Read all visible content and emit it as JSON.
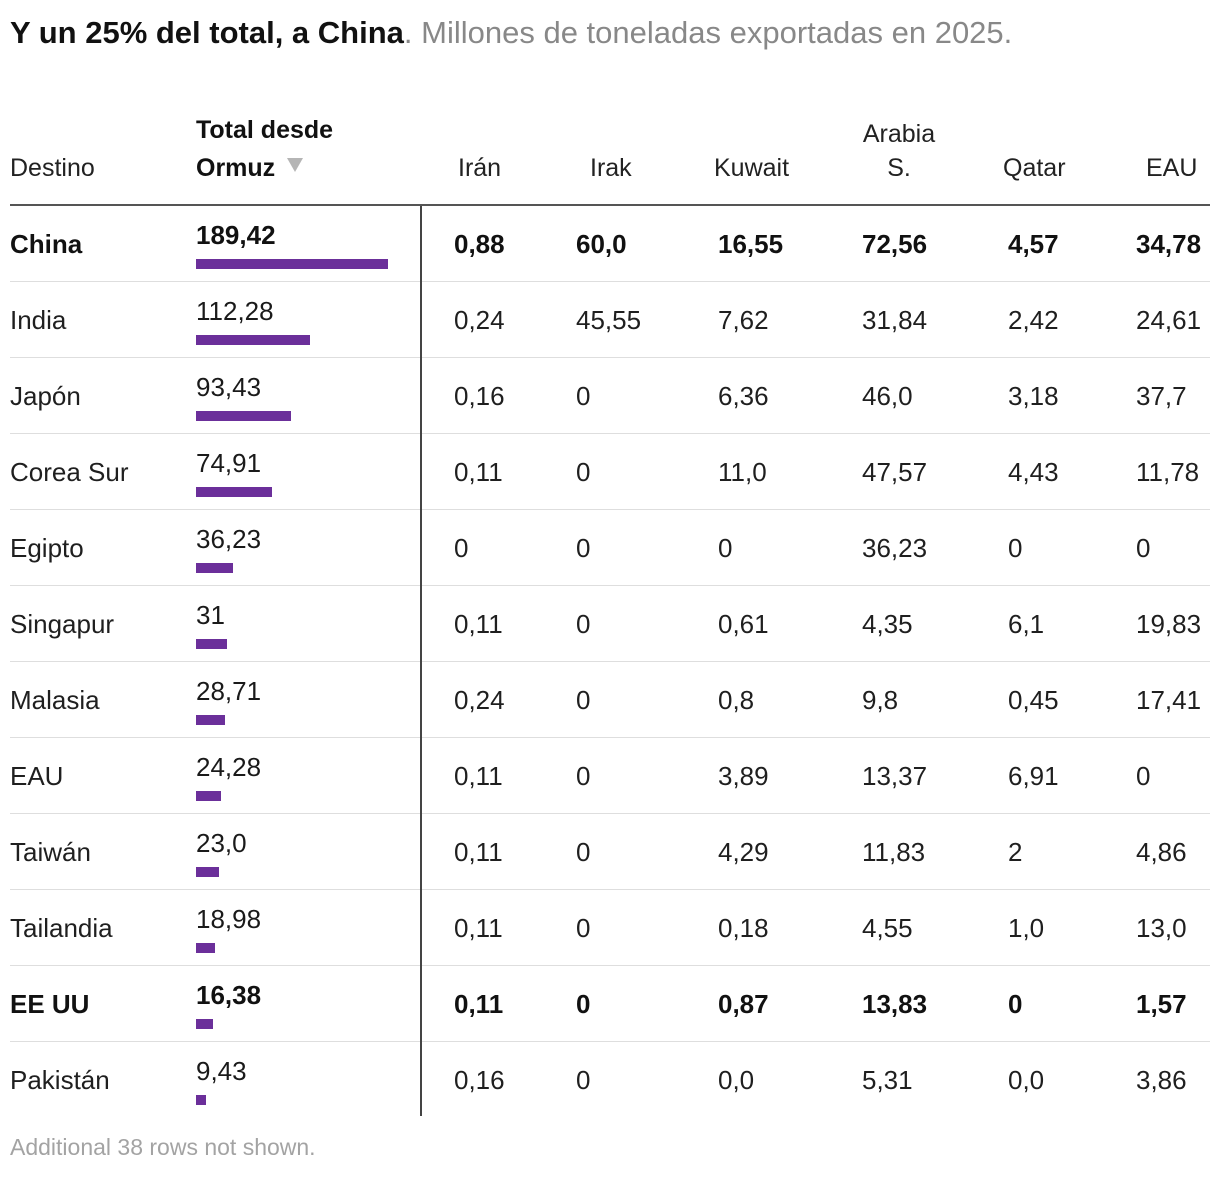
{
  "title": {
    "bold": "Y un 25% del total, a China",
    "separator": ".",
    "subtitle": " Millones de toneladas exportadas en 2025."
  },
  "columns": {
    "destino": "Destino",
    "total_line1": "Total desde",
    "total_line2": "Ormuz",
    "iran": "Irán",
    "irak": "Irak",
    "kuwait": "Kuwait",
    "arabia_line1": "Arabia",
    "arabia_line2": "S.",
    "qatar": "Qatar",
    "eau": "EAU"
  },
  "sort_indicator": "triangle-down-icon",
  "colors": {
    "bar": "#6b2f9a",
    "sort_icon": "#b5b5b5"
  },
  "chart_data": {
    "type": "table",
    "bar_column": "total",
    "bar_max": 189.42,
    "rows": [
      {
        "destino": "China",
        "total": "189,42",
        "total_value": 189.42,
        "iran": "0,88",
        "irak": "60,0",
        "kuwait": "16,55",
        "arabia": "72,56",
        "qatar": "4,57",
        "eau": "34,78",
        "highlight": true
      },
      {
        "destino": "India",
        "total": "112,28",
        "total_value": 112.28,
        "iran": "0,24",
        "irak": "45,55",
        "kuwait": "7,62",
        "arabia": "31,84",
        "qatar": "2,42",
        "eau": "24,61",
        "highlight": false
      },
      {
        "destino": "Japón",
        "total": "93,43",
        "total_value": 93.43,
        "iran": "0,16",
        "irak": "0",
        "kuwait": "6,36",
        "arabia": "46,0",
        "qatar": "3,18",
        "eau": "37,7",
        "highlight": false
      },
      {
        "destino": "Corea Sur",
        "total": "74,91",
        "total_value": 74.91,
        "iran": "0,11",
        "irak": "0",
        "kuwait": "11,0",
        "arabia": "47,57",
        "qatar": "4,43",
        "eau": "11,78",
        "highlight": false
      },
      {
        "destino": "Egipto",
        "total": "36,23",
        "total_value": 36.23,
        "iran": "0",
        "irak": "0",
        "kuwait": "0",
        "arabia": "36,23",
        "qatar": "0",
        "eau": "0",
        "highlight": false
      },
      {
        "destino": "Singapur",
        "total": "31",
        "total_value": 31,
        "iran": "0,11",
        "irak": "0",
        "kuwait": "0,61",
        "arabia": "4,35",
        "qatar": "6,1",
        "eau": "19,83",
        "highlight": false
      },
      {
        "destino": "Malasia",
        "total": "28,71",
        "total_value": 28.71,
        "iran": "0,24",
        "irak": "0",
        "kuwait": "0,8",
        "arabia": "9,8",
        "qatar": "0,45",
        "eau": "17,41",
        "highlight": false
      },
      {
        "destino": "EAU",
        "total": "24,28",
        "total_value": 24.28,
        "iran": "0,11",
        "irak": "0",
        "kuwait": "3,89",
        "arabia": "13,37",
        "qatar": "6,91",
        "eau": "0",
        "highlight": false
      },
      {
        "destino": "Taiwán",
        "total": "23,0",
        "total_value": 23.0,
        "iran": "0,11",
        "irak": "0",
        "kuwait": "4,29",
        "arabia": "11,83",
        "qatar": "2",
        "eau": "4,86",
        "highlight": false
      },
      {
        "destino": "Tailandia",
        "total": "18,98",
        "total_value": 18.98,
        "iran": "0,11",
        "irak": "0",
        "kuwait": "0,18",
        "arabia": "4,55",
        "qatar": "1,0",
        "eau": "13,0",
        "highlight": false
      },
      {
        "destino": "EE UU",
        "total": "16,38",
        "total_value": 16.38,
        "iran": "0,11",
        "irak": "0",
        "kuwait": "0,87",
        "arabia": "13,83",
        "qatar": "0",
        "eau": "1,57",
        "highlight": true
      },
      {
        "destino": "Pakistán",
        "total": "9,43",
        "total_value": 9.43,
        "iran": "0,16",
        "irak": "0",
        "kuwait": "0,0",
        "arabia": "5,31",
        "qatar": "0,0",
        "eau": "3,86",
        "highlight": false
      }
    ]
  },
  "footnote": "Additional 38 rows not shown."
}
